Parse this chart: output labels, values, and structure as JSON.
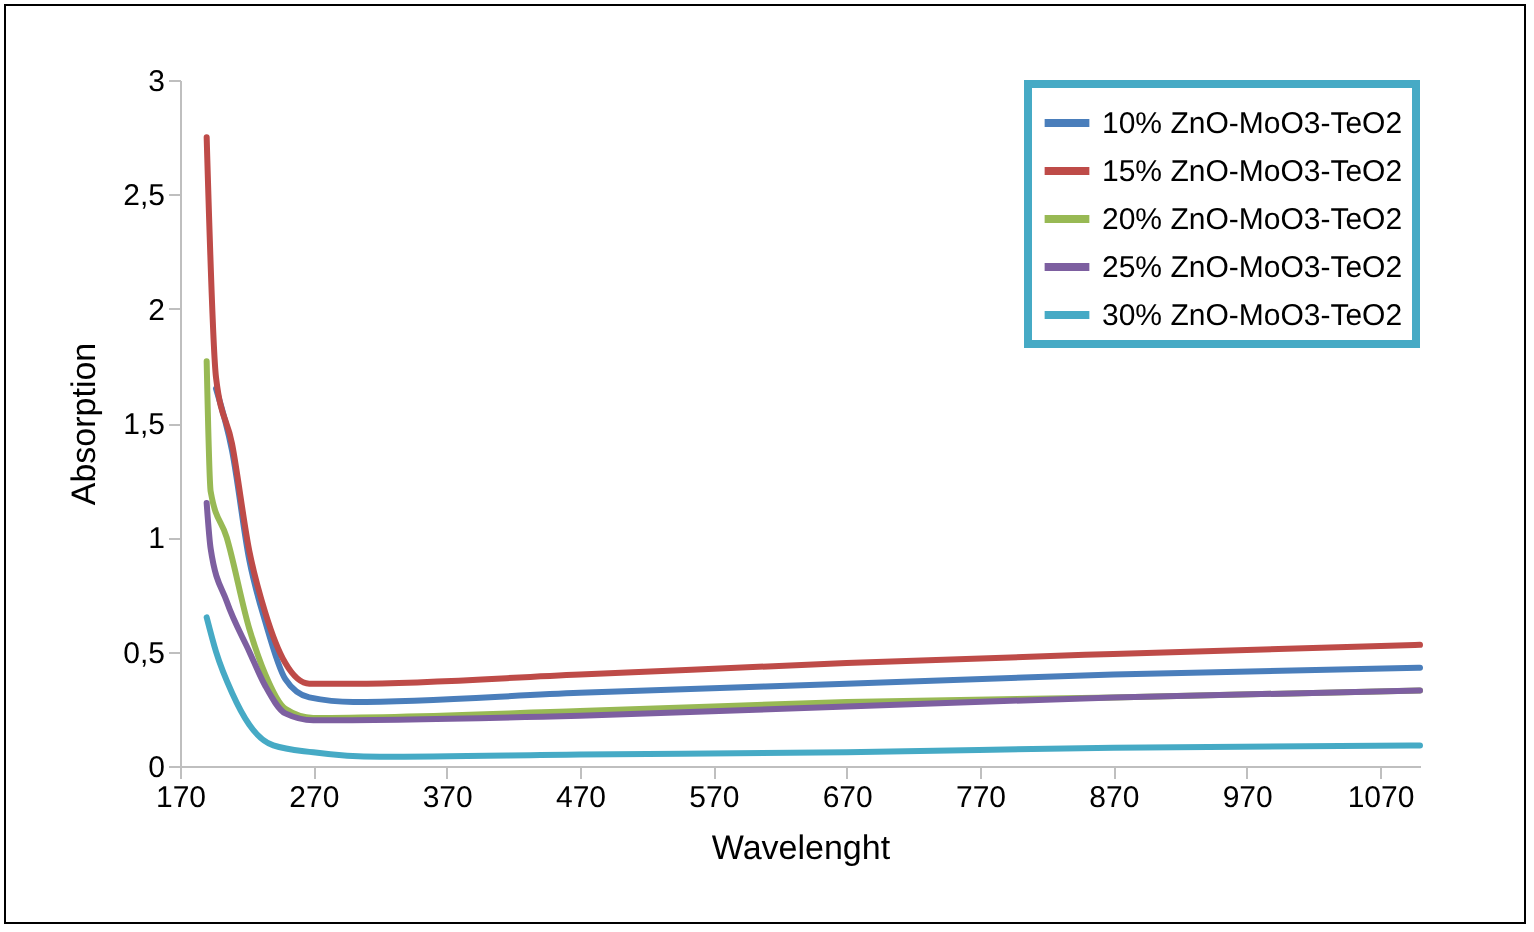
{
  "chart_data": {
    "type": "line",
    "xlabel": "Wavelenght",
    "ylabel": "Absorption",
    "xlim": [
      170,
      1100
    ],
    "xticks": [
      170,
      270,
      370,
      470,
      570,
      670,
      770,
      870,
      970,
      1070
    ],
    "ylim": [
      0,
      3
    ],
    "yticks": [
      0,
      {
        "value": 0.5,
        "label": "0,5"
      },
      1,
      {
        "value": 1.5,
        "label": "1,5"
      },
      2,
      {
        "value": 2.5,
        "label": "2,5"
      },
      3
    ],
    "grid": false,
    "legend": "top right",
    "marker": "none",
    "line_style": "solid",
    "series": [
      {
        "name": "10% ZnO-MoO3-TeO2",
        "color": "#4a7ebb",
        "x": [
          197,
          209,
          222,
          234,
          249,
          267,
          300,
          470,
          670,
          870,
          1100
        ],
        "values": [
          1.65,
          1.38,
          0.9,
          0.63,
          0.38,
          0.3,
          0.28,
          0.32,
          0.36,
          0.4,
          0.43
        ]
      },
      {
        "name": "15% ZnO-MoO3-TeO2",
        "color": "#be4b48",
        "x": [
          190,
          197,
          209,
          222,
          234,
          249,
          267,
          300,
          470,
          670,
          870,
          1100
        ],
        "values": [
          2.75,
          1.7,
          1.41,
          0.94,
          0.67,
          0.45,
          0.36,
          0.36,
          0.4,
          0.45,
          0.49,
          0.53
        ]
      },
      {
        "name": "20% ZnO-MoO3-TeO2",
        "color": "#98b954",
        "x": [
          190,
          193,
          205,
          222,
          234,
          249,
          270,
          470,
          670,
          870,
          1100
        ],
        "values": [
          1.77,
          1.2,
          1.0,
          0.6,
          0.4,
          0.25,
          0.21,
          0.24,
          0.28,
          0.3,
          0.33
        ]
      },
      {
        "name": "25% ZnO-MoO3-TeO2",
        "color": "#7d5fa0",
        "x": [
          190,
          193,
          205,
          222,
          234,
          249,
          270,
          470,
          670,
          870,
          1100
        ],
        "values": [
          1.15,
          0.95,
          0.72,
          0.5,
          0.35,
          0.23,
          0.2,
          0.22,
          0.26,
          0.3,
          0.33
        ]
      },
      {
        "name": "30% ZnO-MoO3-TeO2",
        "color": "#46aac5",
        "x": [
          190,
          197,
          209,
          222,
          240,
          270,
          320,
          470,
          670,
          870,
          1100
        ],
        "values": [
          0.65,
          0.5,
          0.32,
          0.18,
          0.09,
          0.06,
          0.04,
          0.05,
          0.06,
          0.08,
          0.09
        ]
      }
    ]
  }
}
